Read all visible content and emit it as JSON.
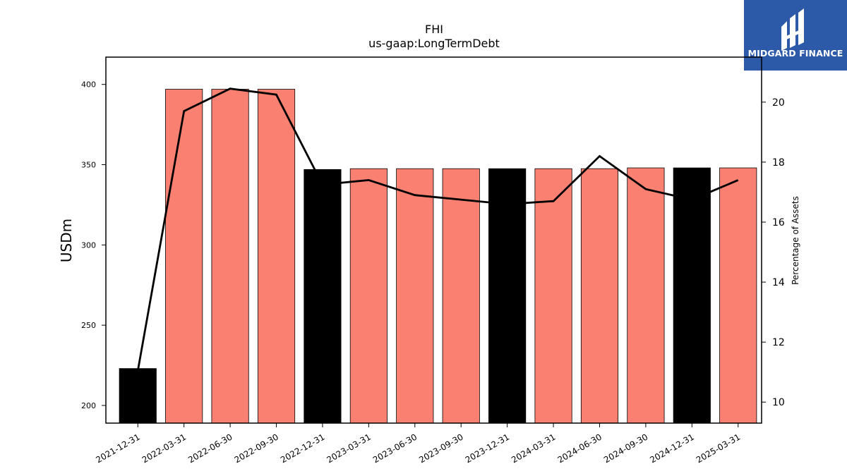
{
  "logo": {
    "text": "MIDGARD FINANCE",
    "background": "#2d5aa8"
  },
  "chart_data": {
    "type": "bar",
    "title": "FHI",
    "subtitle": "us-gaap:LongTermDebt",
    "ylabel": "USDm",
    "y2label": "Percentage of Assets",
    "ylim": [
      189,
      417
    ],
    "y2lim": [
      9.3,
      21.5
    ],
    "yticks": [
      200,
      250,
      300,
      350,
      400
    ],
    "y2ticks": [
      10,
      12,
      14,
      16,
      18,
      20
    ],
    "categories": [
      "2021-12-31",
      "2022-03-31",
      "2022-06-30",
      "2022-09-30",
      "2022-12-31",
      "2023-03-31",
      "2023-06-30",
      "2023-09-30",
      "2023-12-31",
      "2024-03-31",
      "2024-06-30",
      "2024-09-30",
      "2024-12-31",
      "2025-03-31"
    ],
    "series": [
      {
        "values": [
          223,
          397,
          397,
          397,
          347,
          347.5,
          347.5,
          347.5,
          347.5,
          347.5,
          347.5,
          348,
          348,
          348
        ],
        "colors": [
          "#000000",
          "#fa8072",
          "#fa8072",
          "#fa8072",
          "#000000",
          "#fa8072",
          "#fa8072",
          "#fa8072",
          "#000000",
          "#fa8072",
          "#fa8072",
          "#fa8072",
          "#000000",
          "#fa8072"
        ]
      },
      {
        "axis": "right",
        "type": "line",
        "color": "#000000",
        "values": [
          11.05,
          19.7,
          20.45,
          20.25,
          17.25,
          17.4,
          16.9,
          16.75,
          16.6,
          16.7,
          18.2,
          17.1,
          16.75,
          17.4
        ]
      }
    ],
    "grid": false
  }
}
